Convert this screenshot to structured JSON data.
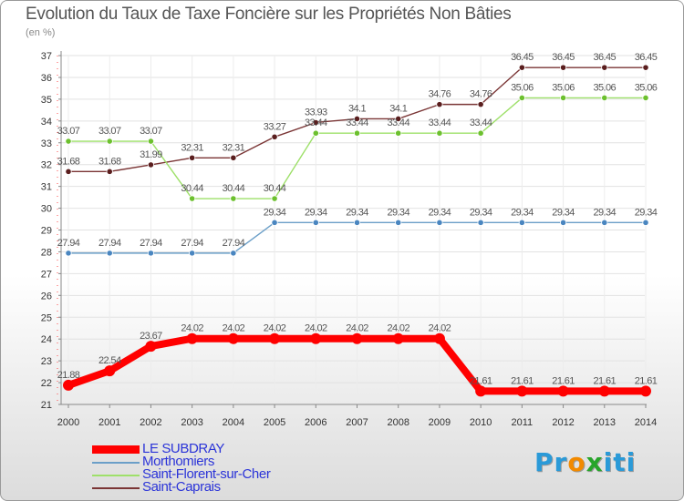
{
  "title": "Evolution du Taux de Taxe Foncière sur les Propriétés Non Bâties",
  "unit": "(en %)",
  "logo": {
    "text": "Proxiti",
    "letters": [
      "P",
      "r",
      "o",
      "x",
      "i",
      "t",
      "i"
    ],
    "colors": [
      "#2a9ad8",
      "#2a9ad8",
      "#f28a00",
      "#27a52a",
      "#2a9ad8",
      "#2a9ad8",
      "#2a9ad8"
    ]
  },
  "chart_data": {
    "type": "line",
    "title": "Evolution du Taux de Taxe Foncière sur les Propriétés Non Bâties",
    "ylabel": "(en %)",
    "xlabel": "",
    "x": [
      "2000",
      "2001",
      "2002",
      "2003",
      "2004",
      "2005",
      "2006",
      "2007",
      "2008",
      "2009",
      "2010",
      "2011",
      "2012",
      "2013",
      "2014"
    ],
    "ylim": [
      21,
      37
    ],
    "yticks": [
      21,
      22,
      23,
      24,
      25,
      26,
      27,
      28,
      29,
      30,
      31,
      32,
      33,
      34,
      35,
      36,
      37
    ],
    "grid": true,
    "legend_position": "bottom-left",
    "series": [
      {
        "name": "LE SUBDRAY",
        "color": "#ff0000",
        "emphasis": true,
        "values": [
          21.88,
          22.54,
          23.67,
          24.02,
          24.02,
          24.02,
          24.02,
          24.02,
          24.02,
          24.02,
          21.61,
          21.61,
          21.61,
          21.61,
          21.61
        ],
        "labels": [
          "21.88",
          "22.54",
          "23.67",
          "24.02",
          "24.02",
          "24.02",
          "24.02",
          "24.02",
          "24.02",
          "24.02",
          "21.61",
          "21.61",
          "21.61",
          "21.61",
          "21.61"
        ]
      },
      {
        "name": "Morthomiers",
        "color": "#6b9fc8",
        "marker": "#4a86c0",
        "values": [
          27.94,
          27.94,
          27.94,
          27.94,
          27.94,
          29.34,
          29.34,
          29.34,
          29.34,
          29.34,
          29.34,
          29.34,
          29.34,
          29.34,
          29.34
        ],
        "labels": [
          "27.94",
          "27.94",
          "27.94",
          "27.94",
          "27.94",
          "29.34",
          "29.34",
          "29.34",
          "29.34",
          "29.34",
          "29.34",
          "29.34",
          "29.34",
          "29.34",
          "29.34"
        ]
      },
      {
        "name": "Saint-Florent-sur-Cher",
        "color": "#9ee06a",
        "marker": "#6cc02e",
        "values": [
          33.07,
          33.07,
          33.07,
          30.44,
          30.44,
          30.44,
          33.44,
          33.44,
          33.44,
          33.44,
          33.44,
          35.06,
          35.06,
          35.06,
          35.06
        ],
        "labels": [
          "33.07",
          "33.07",
          "33.07",
          "30.44",
          "30.44",
          "30.44",
          "33.44",
          "33.44",
          "33.44",
          "33.44",
          "33.44",
          "35.06",
          "35.06",
          "35.06",
          "35.06"
        ]
      },
      {
        "name": "Saint-Caprais",
        "color": "#7a3535",
        "marker": "#5a1e1e",
        "values": [
          31.68,
          31.68,
          31.99,
          32.31,
          32.31,
          33.27,
          33.93,
          34.1,
          34.1,
          34.76,
          34.76,
          36.45,
          36.45,
          36.45,
          36.45
        ],
        "labels": [
          "31.68",
          "31.68",
          "31.99",
          "32.31",
          "32.31",
          "33.27",
          "33.93",
          "34.1",
          "34.1",
          "34.76",
          "34.76",
          "36.45",
          "36.45",
          "36.45",
          "36.45"
        ]
      }
    ]
  }
}
